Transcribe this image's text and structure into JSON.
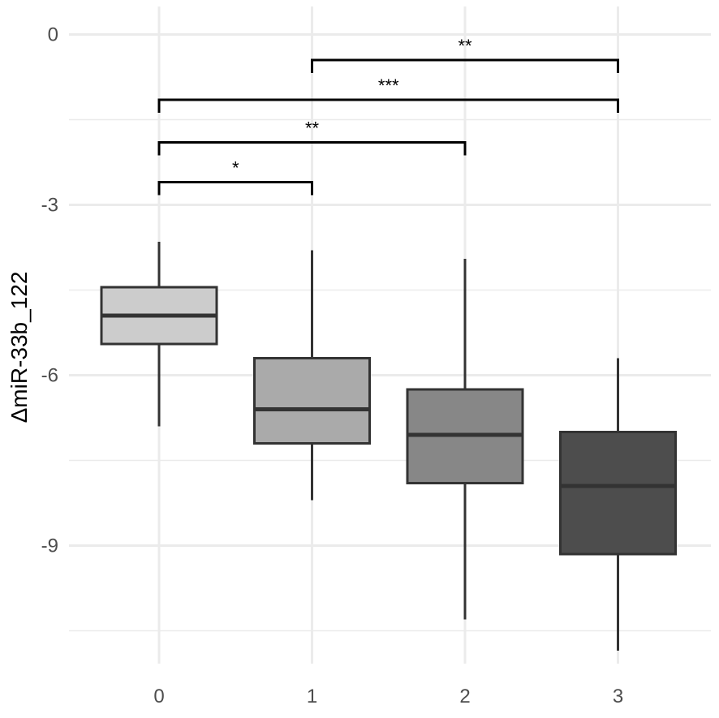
{
  "chart_data": {
    "type": "box",
    "title": "",
    "xlabel": "",
    "ylabel": "ΔmiR-33b_122",
    "categories": [
      "0",
      "1",
      "2",
      "3"
    ],
    "x_ticks": [
      "0",
      "1",
      "2",
      "3"
    ],
    "y_ticks": [
      {
        "value": 0,
        "label": "0"
      },
      {
        "value": -3,
        "label": "-3"
      },
      {
        "value": -6,
        "label": "-6"
      },
      {
        "value": -9,
        "label": "-9"
      }
    ],
    "ylim": [
      -11.05,
      0.6
    ],
    "grid": true,
    "boxes": [
      {
        "category": "0",
        "whisker_low": -6.9,
        "q1": -5.45,
        "median": -4.95,
        "q3": -4.45,
        "whisker_high": -3.65,
        "fill": "#cccccc"
      },
      {
        "category": "1",
        "whisker_low": -8.2,
        "q1": -7.2,
        "median": -6.6,
        "q3": -5.7,
        "whisker_high": -3.8,
        "fill": "#aaaaaa"
      },
      {
        "category": "2",
        "whisker_low": -10.3,
        "q1": -7.9,
        "median": -7.05,
        "q3": -6.25,
        "whisker_high": -3.95,
        "fill": "#878787"
      },
      {
        "category": "3",
        "whisker_low": -10.85,
        "q1": -9.15,
        "median": -7.95,
        "q3": -7.0,
        "whisker_high": -5.7,
        "fill": "#4d4d4d"
      }
    ],
    "comparisons": [
      {
        "from": "1",
        "to": "3",
        "y": -0.45,
        "label": "**"
      },
      {
        "from": "0",
        "to": "3",
        "y": -1.15,
        "label": "***"
      },
      {
        "from": "0",
        "to": "2",
        "y": -1.9,
        "label": "**"
      },
      {
        "from": "0",
        "to": "1",
        "y": -2.6,
        "label": "*"
      }
    ],
    "colors": {
      "box_outline": "#333333",
      "gridline": "#ebebeb",
      "bracket": "#000000"
    }
  }
}
